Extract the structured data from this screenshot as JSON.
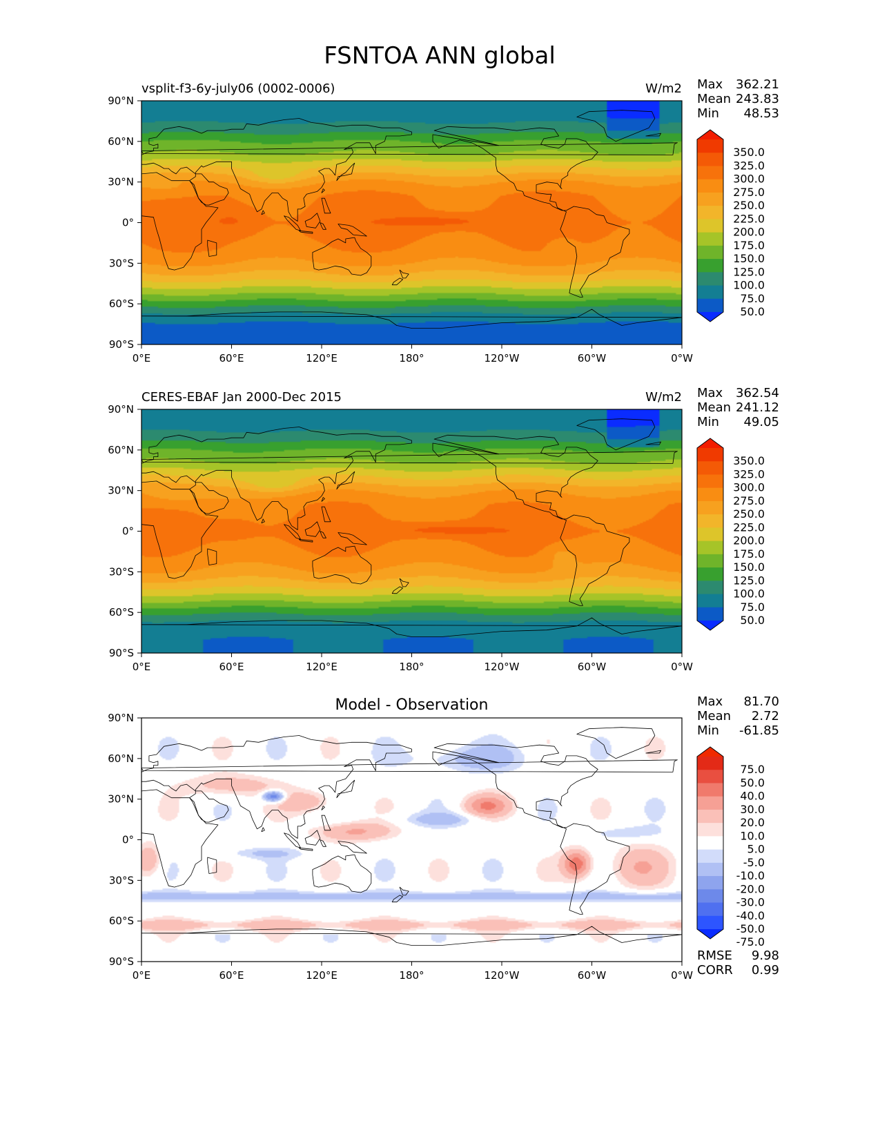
{
  "title": "FSNTOA ANN global",
  "x_ticks": [
    "0°E",
    "60°E",
    "120°E",
    "180°",
    "120°W",
    "60°W",
    "0°W"
  ],
  "y_ticks": [
    "90°N",
    "60°N",
    "30°N",
    "0°",
    "30°S",
    "60°S",
    "90°S"
  ],
  "stat_labels": {
    "max": "Max",
    "mean": "Mean",
    "min": "Min",
    "rmse": "RMSE",
    "corr": "CORR"
  },
  "panels": [
    {
      "id": "test",
      "left_title": "vsplit-f3-6y-july06 (0002-0006)",
      "units": "W/m2",
      "center_title": "",
      "stats": {
        "max": "362.21",
        "mean": "243.83",
        "min": "48.53"
      },
      "colorbar_labels": [
        "350.0",
        "325.0",
        "300.0",
        "275.0",
        "250.0",
        "225.0",
        "200.0",
        "175.0",
        "150.0",
        "125.0",
        "100.0",
        "75.0",
        "50.0"
      ]
    },
    {
      "id": "reference",
      "left_title": "CERES-EBAF Jan 2000-Dec 2015",
      "units": "W/m2",
      "center_title": "",
      "stats": {
        "max": "362.54",
        "mean": "241.12",
        "min": "49.05"
      },
      "colorbar_labels": [
        "350.0",
        "325.0",
        "300.0",
        "275.0",
        "250.0",
        "225.0",
        "200.0",
        "175.0",
        "150.0",
        "125.0",
        "100.0",
        "75.0",
        "50.0"
      ]
    },
    {
      "id": "difference",
      "left_title": "",
      "units": "",
      "center_title": "Model - Observation",
      "stats": {
        "max": "81.70",
        "mean": "2.72",
        "min": "-61.85",
        "rmse": "9.98",
        "corr": "0.99"
      },
      "colorbar_labels": [
        "75.0",
        "50.0",
        "40.0",
        "30.0",
        "20.0",
        "10.0",
        "5.0",
        "-5.0",
        "-10.0",
        "-20.0",
        "-30.0",
        "-40.0",
        "-50.0",
        "-75.0"
      ]
    }
  ],
  "colors": {
    "field_scale": [
      "#0a2cff",
      "#0c5ac6",
      "#137e93",
      "#2c8a6f",
      "#38a02f",
      "#6fb42a",
      "#a6c428",
      "#ddc52a",
      "#f2b52a",
      "#f7a11f",
      "#f98d12",
      "#f7720b",
      "#f45a06",
      "#f03a00",
      "#f21d00"
    ],
    "diff_scale": [
      "#0a2cff",
      "#2d55ff",
      "#4f70f0",
      "#6d89ea",
      "#8ea4ee",
      "#b0c0f4",
      "#d2dcfa",
      "#ffffff",
      "#fde0dc",
      "#fac0b8",
      "#f6a095",
      "#f07a6c",
      "#e94f40",
      "#e32a17",
      "#f02a00"
    ],
    "coastline": "#000000"
  },
  "chart_data": [
    {
      "type": "heatmap",
      "title": "vsplit-f3-6y-july06 (0002-0006)",
      "units": "W/m2",
      "xlim": [
        0,
        360
      ],
      "ylim": [
        -90,
        90
      ],
      "x_tick_values": [
        0,
        60,
        120,
        180,
        240,
        300,
        360
      ],
      "y_tick_values": [
        90,
        60,
        30,
        0,
        -30,
        -60,
        -90
      ],
      "colorbar_levels": [
        50,
        75,
        100,
        125,
        150,
        175,
        200,
        225,
        250,
        275,
        300,
        325,
        350
      ],
      "colorbar_extend": "both",
      "zonal_mean_profile": {
        "lat": [
          90,
          80,
          70,
          60,
          50,
          40,
          30,
          20,
          10,
          0,
          -10,
          -20,
          -30,
          -40,
          -50,
          -60,
          -70,
          -80,
          -90
        ],
        "value": [
          75,
          85,
          110,
          150,
          180,
          230,
          275,
          300,
          305,
          310,
          305,
          295,
          275,
          240,
          190,
          135,
          85,
          60,
          50
        ]
      },
      "max": 362.21,
      "mean": 243.83,
      "min": 48.53
    },
    {
      "type": "heatmap",
      "title": "CERES-EBAF Jan 2000-Dec 2015",
      "units": "W/m2",
      "xlim": [
        0,
        360
      ],
      "ylim": [
        -90,
        90
      ],
      "x_tick_values": [
        0,
        60,
        120,
        180,
        240,
        300,
        360
      ],
      "y_tick_values": [
        90,
        60,
        30,
        0,
        -30,
        -60,
        -90
      ],
      "colorbar_levels": [
        50,
        75,
        100,
        125,
        150,
        175,
        200,
        225,
        250,
        275,
        300,
        325,
        350
      ],
      "colorbar_extend": "both",
      "zonal_mean_profile": {
        "lat": [
          90,
          80,
          70,
          60,
          50,
          40,
          30,
          20,
          10,
          0,
          -10,
          -20,
          -30,
          -40,
          -50,
          -60,
          -70,
          -80,
          -90
        ],
        "value": [
          75,
          85,
          110,
          150,
          180,
          225,
          270,
          295,
          300,
          310,
          300,
          290,
          270,
          235,
          185,
          130,
          85,
          75,
          75
        ]
      },
      "max": 362.54,
      "mean": 241.12,
      "min": 49.05
    },
    {
      "type": "heatmap",
      "title": "Model - Observation",
      "xlim": [
        0,
        360
      ],
      "ylim": [
        -90,
        90
      ],
      "x_tick_values": [
        0,
        60,
        120,
        180,
        240,
        300,
        360
      ],
      "y_tick_values": [
        90,
        60,
        30,
        0,
        -30,
        -60,
        -90
      ],
      "colorbar_levels": [
        -75,
        -50,
        -40,
        -30,
        -20,
        -10,
        -5,
        5,
        10,
        20,
        30,
        40,
        50,
        75
      ],
      "colorbar_extend": "both",
      "max": 81.7,
      "mean": 2.72,
      "min": -61.85,
      "rmse": 9.98,
      "corr": 0.99
    }
  ]
}
